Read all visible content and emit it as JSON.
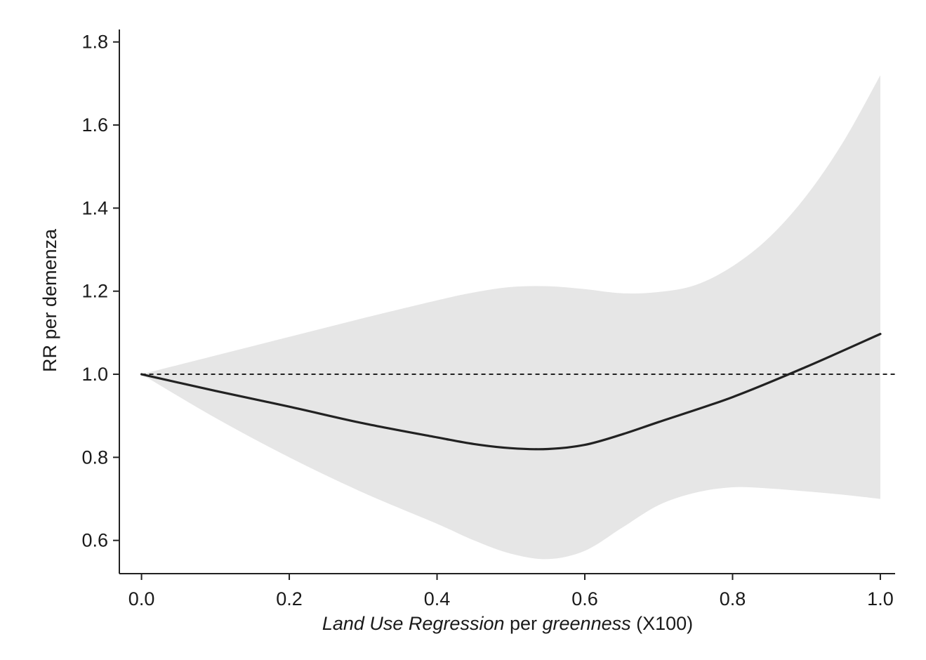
{
  "chart_data": {
    "type": "line",
    "title": "",
    "xlabel_parts": [
      {
        "text": "Land Use Regression",
        "italic": true
      },
      {
        "text": " per ",
        "italic": false
      },
      {
        "text": "greenness",
        "italic": true
      },
      {
        "text": " (X100)",
        "italic": false
      }
    ],
    "ylabel": "RR per demenza",
    "xlim": [
      -0.03,
      1.02
    ],
    "ylim": [
      0.52,
      1.83
    ],
    "x_ticks": [
      "0.0",
      "0.2",
      "0.4",
      "0.6",
      "0.8",
      "1.0"
    ],
    "y_ticks": [
      "0.6",
      "0.8",
      "1.0",
      "1.2",
      "1.4",
      "1.6",
      "1.8"
    ],
    "reference_line": {
      "y": 1.0,
      "style": "dashed"
    },
    "grid": false,
    "legend": "none",
    "series": [
      {
        "kind": "estimate",
        "color": "#222222",
        "x": [
          0.0,
          0.1,
          0.2,
          0.3,
          0.4,
          0.45,
          0.5,
          0.55,
          0.6,
          0.65,
          0.7,
          0.8,
          0.9,
          1.0
        ],
        "y": [
          1.0,
          0.96,
          0.922,
          0.882,
          0.848,
          0.832,
          0.822,
          0.82,
          0.83,
          0.855,
          0.885,
          0.945,
          1.018,
          1.097
        ]
      },
      {
        "kind": "confidence_band",
        "color": "#e6e6e6",
        "x": [
          0.0,
          0.1,
          0.2,
          0.3,
          0.4,
          0.45,
          0.5,
          0.55,
          0.6,
          0.65,
          0.7,
          0.75,
          0.8,
          0.85,
          0.9,
          0.95,
          1.0
        ],
        "upper": [
          1.0,
          1.045,
          1.09,
          1.135,
          1.178,
          1.197,
          1.21,
          1.212,
          1.205,
          1.195,
          1.198,
          1.215,
          1.26,
          1.33,
          1.43,
          1.56,
          1.72
        ],
        "lower": [
          1.0,
          0.895,
          0.8,
          0.715,
          0.64,
          0.6,
          0.568,
          0.555,
          0.575,
          0.63,
          0.685,
          0.715,
          0.728,
          0.725,
          0.718,
          0.71,
          0.7
        ]
      }
    ]
  }
}
